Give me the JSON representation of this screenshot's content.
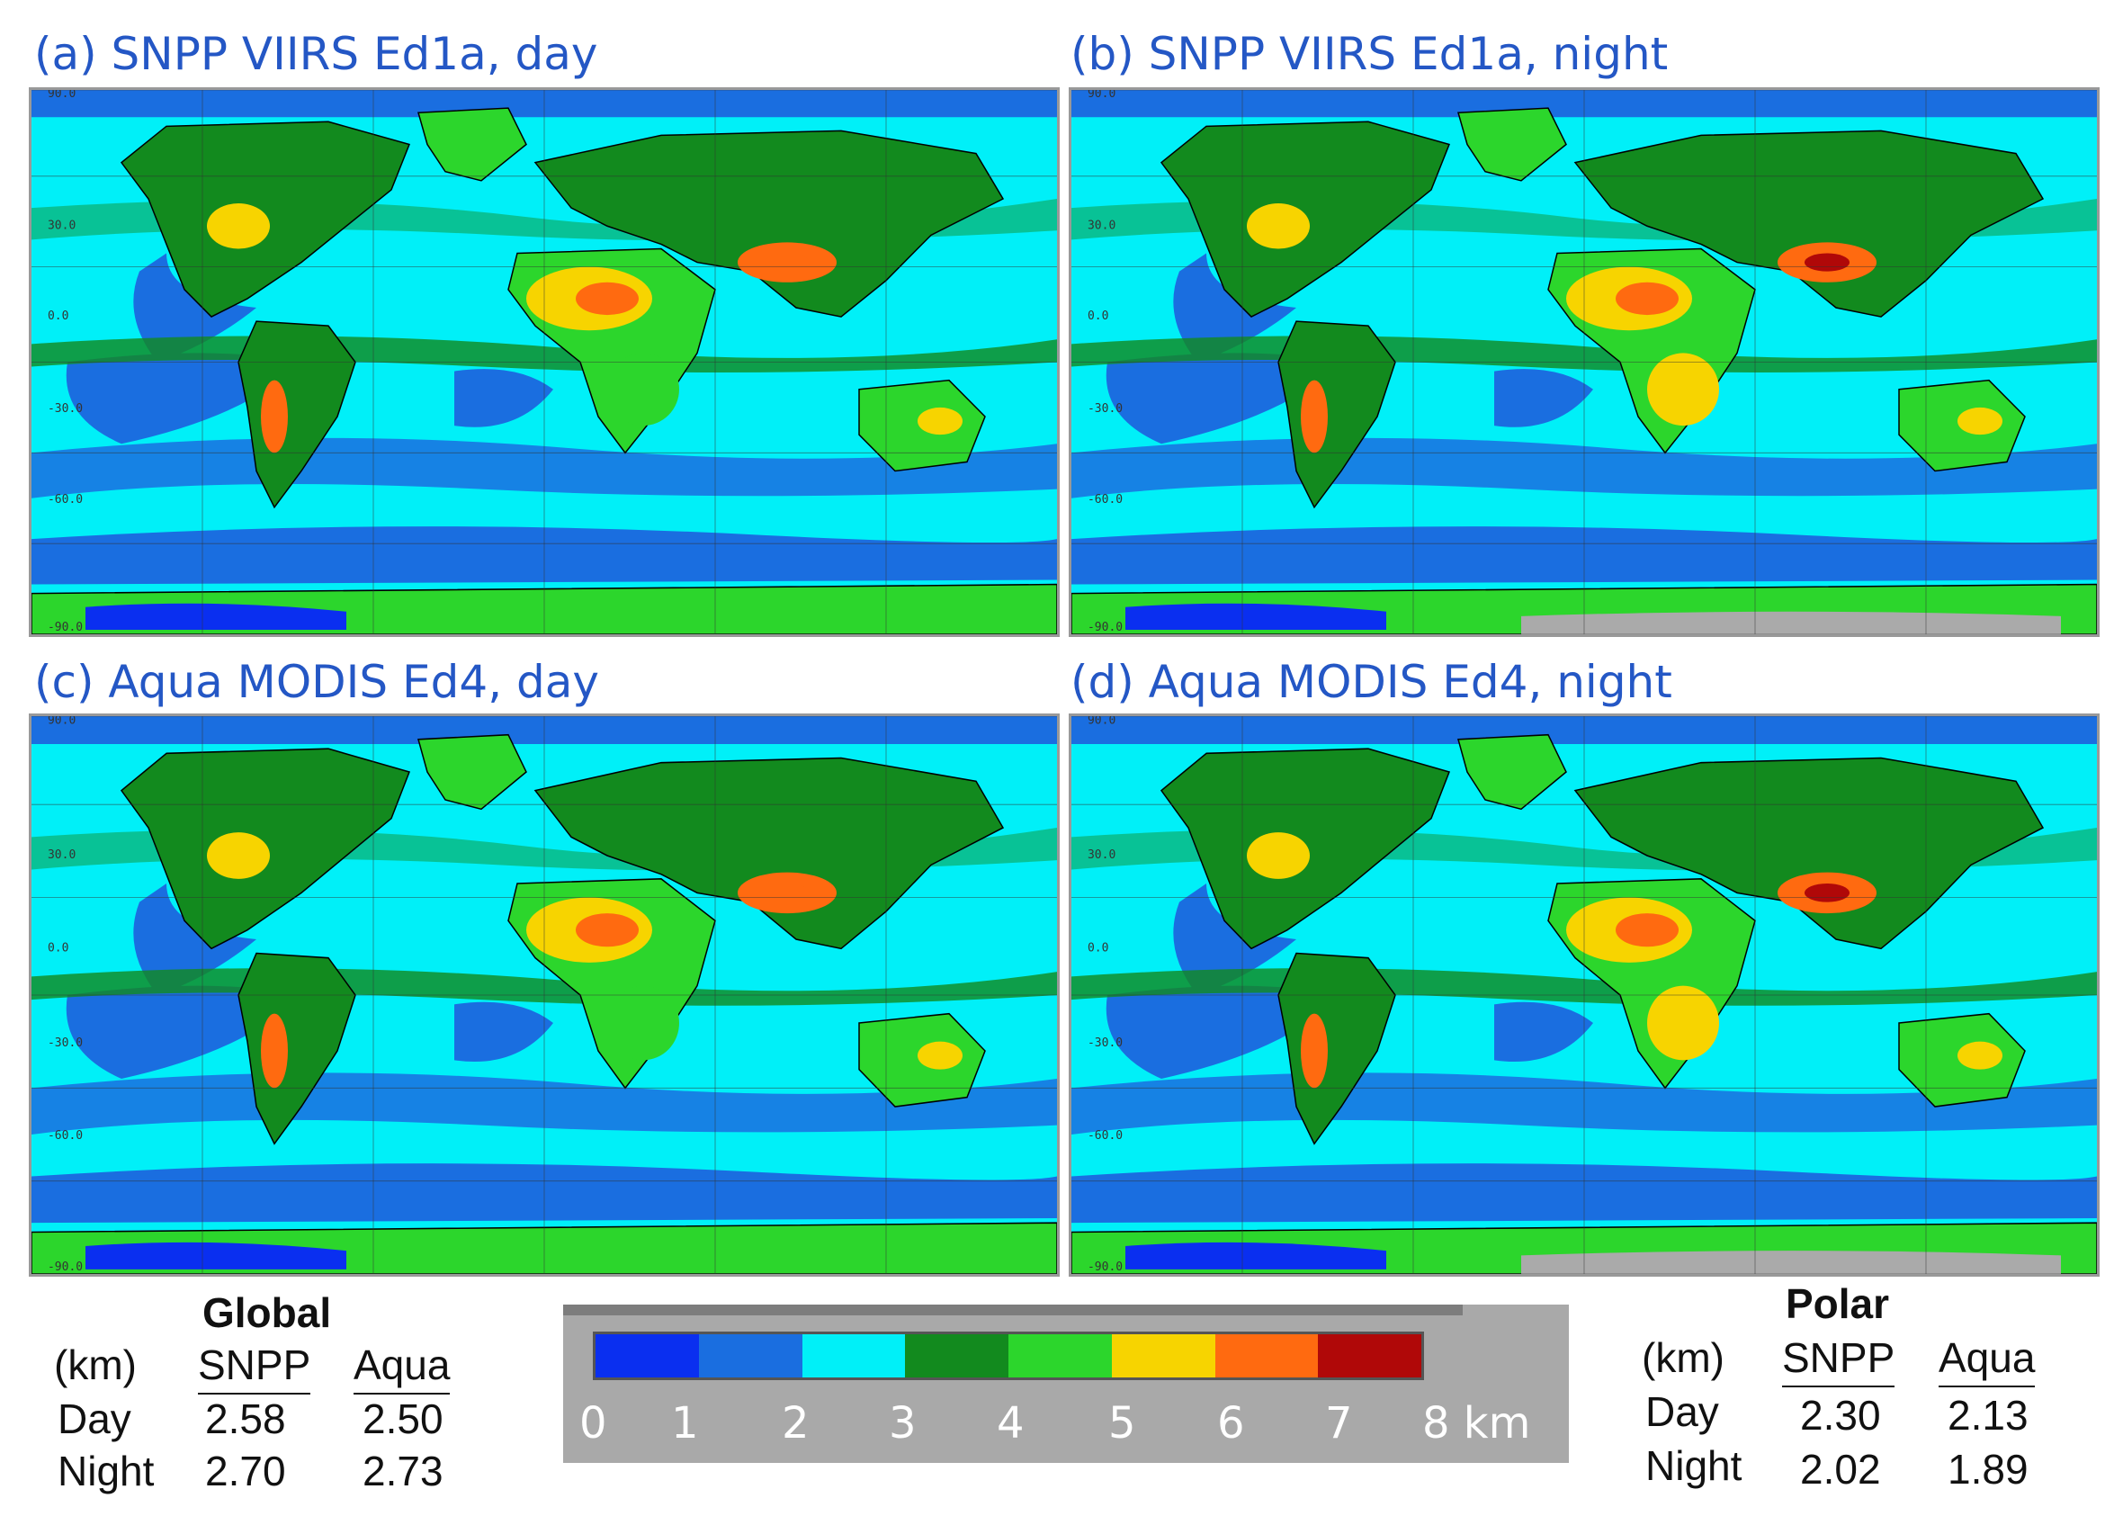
{
  "panels": [
    {
      "title": "(a) SNPP VIIRS Ed1a, day"
    },
    {
      "title": "(b) SNPP VIIRS Ed1a, night"
    },
    {
      "title": "(c) Aqua MODIS Ed4, day"
    },
    {
      "title": "(d) Aqua MODIS Ed4, night"
    }
  ],
  "map_lat_labels": [
    "90.0",
    "30.0",
    "0.0",
    "-30.0",
    "-60.0",
    "-90.0"
  ],
  "colorbar": {
    "ticks": [
      "0",
      "1",
      "2",
      "3",
      "4",
      "5",
      "6",
      "7",
      "8 km"
    ],
    "colors": [
      "#0a2ff0",
      "#1a6ee0",
      "#00f0f8",
      "#128a1e",
      "#2cd62c",
      "#f7d400",
      "#ff6a10",
      "#b00808"
    ]
  },
  "global_table": {
    "title": "Global",
    "unit": "(km)",
    "col1": "SNPP",
    "col2": "Aqua",
    "rows": [
      {
        "label": "Day",
        "v1": "2.58",
        "v2": "2.50"
      },
      {
        "label": "Night",
        "v1": "2.70",
        "v2": "2.73"
      }
    ]
  },
  "polar_table": {
    "title": "Polar",
    "unit": "(km)",
    "col1": "SNPP",
    "col2": "Aqua",
    "rows": [
      {
        "label": "Day",
        "v1": "2.30",
        "v2": "2.13"
      },
      {
        "label": "Night",
        "v1": "2.02",
        "v2": "1.89"
      }
    ]
  }
}
